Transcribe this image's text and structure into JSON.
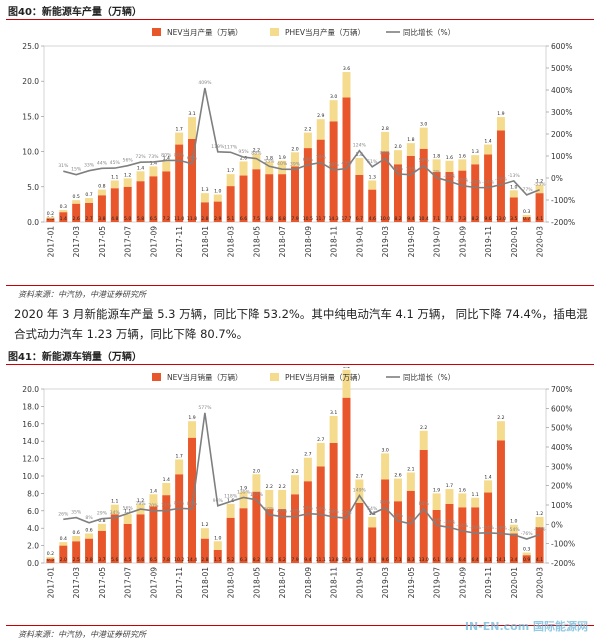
{
  "chart_data": [
    {
      "type": "bar",
      "title": "图40：新能源车产量（万辆）",
      "source": "资料来源：中汽协，中港证券研究所",
      "categories": [
        "2017-01",
        null,
        "2017-03",
        null,
        "2017-05",
        null,
        "2017-07",
        null,
        "2017-09",
        null,
        "2017-11",
        null,
        "2018-01",
        null,
        "2018-03",
        null,
        "2018-05",
        null,
        "2018-07",
        null,
        "2018-09",
        null,
        "2018-11",
        null,
        "2019-01",
        null,
        "2019-03",
        null,
        "2019-05",
        null,
        "2019-07",
        null,
        "2019-09",
        null,
        "2019-11",
        null,
        "2020-01",
        null,
        "2020-03"
      ],
      "series": [
        {
          "name": "NEV当月产量（万辆）",
          "color": "#e8572b",
          "stack": true,
          "values": [
            0.5,
            1.4,
            2.6,
            2.7,
            3.8,
            4.8,
            5.0,
            5.8,
            6.5,
            7.2,
            11.0,
            11.8,
            2.8,
            2.9,
            5.1,
            6.6,
            7.5,
            6.8,
            6.8,
            7.9,
            10.5,
            11.7,
            14.3,
            17.7,
            6.7,
            4.6,
            10.0,
            8.2,
            9.4,
            10.4,
            7.1,
            7.1,
            7.3,
            8.2,
            9.6,
            13.0,
            3.5,
            0.7,
            4.1
          ],
          "value_labels": [
            "0.5",
            "1.4",
            "2.6",
            "2.7",
            "3.8",
            "4.8",
            "5.0",
            "5.8",
            "6.5",
            "7.2",
            "11.0",
            "11.8",
            "2.8",
            "2.9",
            "5.1",
            "6.6",
            "7.5",
            "6.8",
            "6.8",
            "7.9",
            "10.5",
            "11.7",
            "14.3",
            "17.7",
            "6.7",
            "4.6",
            "10.0",
            "8.2",
            "9.4",
            "10.4",
            "7.1",
            "7.1",
            "7.3",
            "8.2",
            "9.6",
            "13.0",
            "3.5",
            "0.7",
            "4.1"
          ]
        },
        {
          "name": "PHEV当月产量（万辆）",
          "color": "#f5db8e",
          "stack": true,
          "values": [
            0.2,
            0.3,
            0.5,
            0.7,
            0.8,
            1.1,
            1.2,
            1.4,
            1.4,
            1.4,
            1.7,
            3.1,
            1.3,
            1.0,
            1.7,
            2.0,
            2.2,
            1.8,
            1.9,
            2.0,
            2.2,
            2.9,
            3.0,
            3.6,
            2.4,
            1.3,
            2.8,
            2.0,
            1.8,
            3.0,
            1.8,
            1.6,
            1.6,
            1.3,
            1.4,
            1.9,
            1.0,
            0.3,
            1.2
          ],
          "value_labels": [
            "0.2",
            "0.3",
            "0.5",
            "0.7",
            "0.8",
            "1.1",
            "1.2",
            "1.4",
            "1.4",
            "1.4",
            "1.7",
            "3.1",
            "1.3",
            "1.0",
            "1.7",
            "2.0",
            "2.2",
            "1.8",
            "1.9",
            "2.0",
            "2.2",
            "2.9",
            "3.0",
            "3.6",
            "2.4",
            "1.3",
            "2.8",
            "2.0",
            "1.8",
            "3.0",
            "1.8",
            "1.6",
            "1.6",
            "1.3",
            "1.4",
            "1.9",
            "1.0",
            "0.3",
            "1.2"
          ]
        },
        {
          "name": "同比增长（%）",
          "color": "#7f7f7f",
          "type": "line",
          "axis": "y2",
          "values": [
            null,
            31,
            15,
            33,
            44,
            45,
            56,
            72,
            73,
            80,
            80,
            65,
            409,
            119,
            117,
            95,
            88,
            53,
            40,
            39,
            60,
            70,
            36,
            43,
            124,
            51,
            88,
            18,
            15,
            56,
            2,
            -15,
            -35,
            -43,
            -44,
            -30,
            -13,
            -77,
            -53
          ],
          "value_labels": [
            null,
            "31%",
            "15%",
            "33%",
            "44%",
            "45%",
            "56%",
            "72%",
            "73%",
            "80%",
            "80%",
            "65%",
            "409%",
            "119%",
            "117%",
            "95%",
            "88%",
            "53%",
            "40%",
            "39%",
            "60%",
            "70%",
            "36%",
            "43%",
            "124%",
            "51%",
            "88%",
            "18%",
            "15%",
            "56%",
            "2%",
            "-15%",
            "-35%",
            "-43%",
            "-44%",
            "-30%",
            "-13%",
            "-77%",
            "-53%"
          ]
        }
      ],
      "ylim": [
        0,
        25
      ],
      "yticks": [
        {
          "value": 0,
          "label": "0.0"
        },
        {
          "value": 5,
          "label": "5.0"
        },
        {
          "value": 10,
          "label": "10.0"
        },
        {
          "value": 15,
          "label": "15.0"
        },
        {
          "value": 20,
          "label": "20.0"
        },
        {
          "value": 25,
          "label": "25.0"
        }
      ],
      "y2lim": [
        -200,
        600
      ],
      "y2ticks": [
        {
          "value": -200,
          "label": "-200%"
        },
        {
          "value": -100,
          "label": "-100%"
        },
        {
          "value": 0,
          "label": "0%"
        },
        {
          "value": 100,
          "label": "100%"
        },
        {
          "value": 200,
          "label": "200%"
        },
        {
          "value": 300,
          "label": "300%"
        },
        {
          "value": 400,
          "label": "400%"
        },
        {
          "value": 500,
          "label": "500%"
        },
        {
          "value": 600,
          "label": "600%"
        }
      ],
      "legend": "top"
    },
    {
      "type": "bar",
      "title": "图41：新能源车销量（万辆）",
      "source": "资料来源：中汽协，中港证券研究所",
      "categories": [
        "2017-01",
        null,
        "2017-03",
        null,
        "2017-05",
        null,
        "2017-07",
        null,
        "2017-09",
        null,
        "2017-11",
        null,
        "2018-01",
        null,
        "2018-03",
        null,
        "2018-05",
        null,
        "2018-07",
        null,
        "2018-09",
        null,
        "2018-11",
        null,
        "2019-01",
        null,
        "2019-03",
        null,
        "2019-05",
        null,
        "2019-07",
        null,
        "2019-09",
        null,
        "2019-11",
        null,
        "2020-01",
        null,
        "2020-03"
      ],
      "series": [
        {
          "name": "NEV当月销量（万辆）",
          "color": "#e8572b",
          "stack": true,
          "values": [
            0.5,
            2.0,
            2.5,
            2.8,
            3.7,
            5.6,
            4.5,
            5.6,
            6.5,
            7.8,
            10.2,
            14.4,
            2.8,
            1.5,
            5.2,
            6.3,
            8.2,
            6.2,
            6.2,
            7.9,
            9.4,
            11.1,
            13.8,
            19.0,
            6.9,
            4.1,
            9.6,
            7.1,
            8.3,
            13.0,
            6.1,
            6.8,
            6.4,
            6.4,
            8.1,
            14.1,
            3.4,
            0.9,
            4.1
          ],
          "value_labels": [
            "0.5",
            "2.0",
            "2.5",
            "2.8",
            "3.7",
            "5.6",
            "4.5",
            "5.6",
            "6.5",
            "7.8",
            "10.2",
            "14.4",
            "2.8",
            "1.5",
            "5.2",
            "6.3",
            "8.2",
            "6.2",
            "6.2",
            "7.9",
            "9.4",
            "11.1",
            "13.8",
            "19.0",
            "6.9",
            "4.1",
            "9.6",
            "7.1",
            "8.3",
            "13.0",
            "6.1",
            "6.8",
            "6.4",
            "6.4",
            "8.1",
            "14.1",
            "3.4",
            "0.9",
            "4.1"
          ]
        },
        {
          "name": "PHEV当月销量（万辆）",
          "color": "#f5db8e",
          "stack": true,
          "values": [
            0.2,
            0.4,
            0.6,
            0.6,
            0.8,
            1.1,
            1.1,
            1.2,
            1.4,
            1.4,
            1.7,
            1.9,
            1.2,
            1.0,
            1.6,
            1.9,
            2.0,
            2.2,
            2.2,
            2.2,
            2.7,
            2.7,
            3.1,
            3.2,
            2.7,
            1.2,
            3.0,
            2.6,
            2.1,
            2.2,
            1.9,
            1.7,
            1.6,
            1.1,
            1.4,
            2.2,
            1.0,
            0.3,
            1.2
          ],
          "value_labels": [
            "0.2",
            "0.4",
            "0.6",
            "0.6",
            "0.8",
            "1.1",
            "1.1",
            "1.2",
            "1.4",
            "1.4",
            "1.7",
            "1.9",
            "1.2",
            "1.0",
            "1.6",
            "1.9",
            "2.0",
            "2.2",
            "2.2",
            "2.2",
            "2.7",
            "2.7",
            "3.1",
            "3.2",
            "2.7",
            "1.2",
            "3.0",
            "2.6",
            "2.1",
            "2.2",
            "1.9",
            "1.7",
            "1.6",
            "1.1",
            "1.4",
            "2.2",
            "1.0",
            "0.3",
            "1.2"
          ]
        },
        {
          "name": "同比增长（%）",
          "color": "#7f7f7f",
          "type": "line",
          "axis": "y2",
          "values": [
            null,
            26,
            35,
            8,
            29,
            34,
            56,
            79,
            70,
            71,
            83,
            80,
            577,
            96,
            118,
            139,
            127,
            50,
            40,
            40,
            55,
            52,
            38,
            32,
            149,
            54,
            86,
            18,
            2,
            80,
            -5,
            -16,
            -34,
            -46,
            -44,
            -48,
            -54,
            -76,
            -53
          ],
          "value_labels": [
            null,
            "26%",
            "35%",
            "8%",
            "29%",
            "34%",
            "56%",
            "79%",
            "70%",
            "71%",
            "83%",
            "80%",
            "577%",
            "96%",
            "118%",
            "139%",
            "127%",
            "50%",
            "40%",
            "40%",
            "55%",
            "52%",
            "38%",
            "32%",
            "149%",
            "54%",
            "86%",
            "18%",
            "2%",
            "80%",
            "-5%",
            "-16%",
            "-34%",
            "-46%",
            "-44%",
            "-48%",
            "-54%",
            "-76%",
            "-53%"
          ]
        }
      ],
      "ylim": [
        0,
        20
      ],
      "yticks": [
        {
          "value": 0,
          "label": "0.0"
        },
        {
          "value": 2,
          "label": "2.0"
        },
        {
          "value": 4,
          "label": "4.0"
        },
        {
          "value": 6,
          "label": "6.0"
        },
        {
          "value": 8,
          "label": "8.0"
        },
        {
          "value": 10,
          "label": "10.0"
        },
        {
          "value": 12,
          "label": "12.0"
        },
        {
          "value": 14,
          "label": "14.0"
        },
        {
          "value": 16,
          "label": "16.0"
        },
        {
          "value": 18,
          "label": "18.0"
        },
        {
          "value": 20,
          "label": "20.0"
        }
      ],
      "y2lim": [
        -200,
        700
      ],
      "y2ticks": [
        {
          "value": -200,
          "label": "-200%"
        },
        {
          "value": -100,
          "label": "-100%"
        },
        {
          "value": 0,
          "label": "0%"
        },
        {
          "value": 100,
          "label": "100%"
        },
        {
          "value": 200,
          "label": "200%"
        },
        {
          "value": 300,
          "label": "300%"
        },
        {
          "value": 400,
          "label": "400%"
        },
        {
          "value": 500,
          "label": "500%"
        },
        {
          "value": 600,
          "label": "600%"
        },
        {
          "value": 700,
          "label": "700%"
        }
      ],
      "legend": "top"
    }
  ],
  "paragraph": "2020 年 3 月新能源车产量 5.3 万辆，同比下降 53.2%。其中纯电动汽车 4.1 万辆， 同比下降 74.4%，插电混合式动力汽车 1.23 万辆，同比下降 80.7%。",
  "watermark": "IN-EN.com 国际能源网"
}
